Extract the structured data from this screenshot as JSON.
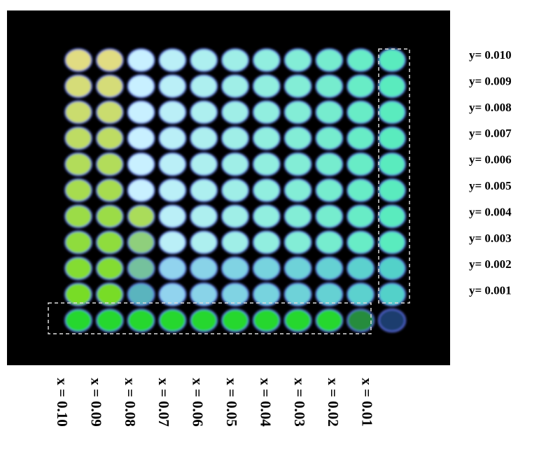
{
  "y_labels": [
    "y= 0.010",
    "y= 0.009",
    "y= 0.008",
    "y= 0.007",
    "y= 0.006",
    "y= 0.005",
    "y= 0.004",
    "y= 0.003",
    "y= 0.002",
    "y= 0.001"
  ],
  "x_labels": [
    "x = 0.10",
    "x = 0.09",
    "x = 0.08",
    "x = 0.07",
    "x = 0.06",
    "x = 0.05",
    "x = 0.04",
    "x = 0.03",
    "x = 0.02",
    "x = 0.01"
  ]
}
